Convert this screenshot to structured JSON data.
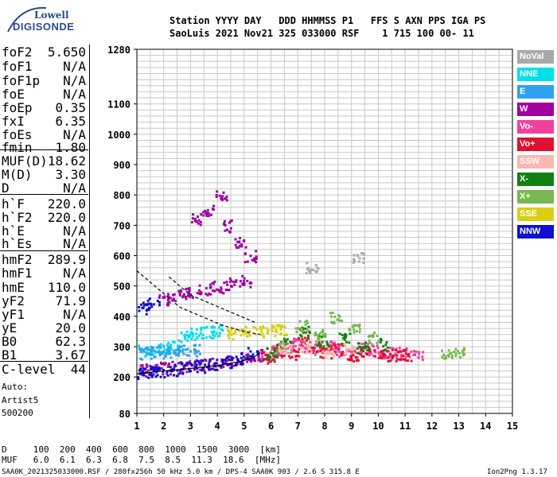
{
  "logo": {
    "line1": "Lowell",
    "line2": "DIGISONDE"
  },
  "header": {
    "labels": "Station YYYY DAY   DDD HHMMSS P1   FFS S AXN PPS IGA PS",
    "values": "SaoLuis 2021 Nov21 325 033000 RSF    1 715 100 00- 11"
  },
  "params": [
    {
      "name": "foF2",
      "value": "5.650"
    },
    {
      "name": "foF1",
      "value": "N/A"
    },
    {
      "name": "foF1p",
      "value": "N/A"
    },
    {
      "name": "foE",
      "value": "N/A"
    },
    {
      "name": "foEp",
      "value": "0.35"
    },
    {
      "name": "fxI",
      "value": "6.35"
    },
    {
      "name": "foEs",
      "value": "N/A"
    },
    {
      "name": "fmin",
      "value": "1.80"
    },
    {
      "name": "MUF(D)",
      "value": "18.62"
    },
    {
      "name": "M(D)",
      "value": "3.30"
    },
    {
      "name": "D",
      "value": "N/A"
    },
    {
      "name": "h`F",
      "value": "220.0"
    },
    {
      "name": "h`F2",
      "value": "220.0"
    },
    {
      "name": "h`E",
      "value": "N/A"
    },
    {
      "name": "h`Es",
      "value": "N/A"
    },
    {
      "name": "hmF2",
      "value": "289.9"
    },
    {
      "name": "hmF1",
      "value": "N/A"
    },
    {
      "name": "hmE",
      "value": "110.0"
    },
    {
      "name": "yF2",
      "value": "71.9"
    },
    {
      "name": "yF1",
      "value": "N/A"
    },
    {
      "name": "yE",
      "value": "20.0"
    },
    {
      "name": "B0",
      "value": "62.3"
    },
    {
      "name": "B1",
      "value": "3.67"
    },
    {
      "name": "C-level",
      "value": "44"
    }
  ],
  "notes": {
    "auto": "Auto:",
    "artist": "Artist5",
    "code": "500200"
  },
  "legend": [
    {
      "label": "NoVal",
      "color": "#a9a9a9"
    },
    {
      "label": "NNE",
      "color": "#00e0e8"
    },
    {
      "label": "E",
      "color": "#2ea0f0"
    },
    {
      "label": "W",
      "color": "#a000a0"
    },
    {
      "label": "Vo-",
      "color": "#f040a0"
    },
    {
      "label": "Vo+",
      "color": "#e01030"
    },
    {
      "label": "SSW",
      "color": "#f8b8b0"
    },
    {
      "label": "X-",
      "color": "#108010"
    },
    {
      "label": "X+",
      "color": "#78b850"
    },
    {
      "label": "SSE",
      "color": "#d8d010"
    },
    {
      "label": "NNW",
      "color": "#1010d0"
    }
  ],
  "footer": {
    "d_row": "D     100  200  400  600  800  1000  1500  3000  [km]",
    "muf_row": "MUF   6.0  6.1  6.3  6.8  7.5  8.5  11.3  18.6  [MHz]",
    "file_info": "SAA0K_2021325033000.RSF / 280fx256h 50 kHz 5.0 km / DPS-4 SAA0K 903 / 2.6 S 315.8 E",
    "version": "Ion2Png 1.3.17"
  },
  "chart_data": {
    "type": "scatter",
    "title": "",
    "xlabel": "",
    "ylabel": "",
    "xlim": [
      1,
      15
    ],
    "ylim": [
      80,
      1280
    ],
    "x_ticks": [
      1,
      2,
      3,
      4,
      5,
      6,
      7,
      8,
      9,
      10,
      11,
      12,
      13,
      14,
      15
    ],
    "y_ticks": [
      80,
      200,
      300,
      400,
      500,
      600,
      700,
      800,
      900,
      1000,
      1100,
      1280
    ],
    "grid": true,
    "series": [
      {
        "color": "#f040a0",
        "x": [
          5.8,
          6.2,
          6.6,
          7.0,
          7.4,
          7.8,
          8.2,
          8.6,
          9.0,
          9.4,
          9.8,
          10.2,
          10.6,
          11.0,
          11.5
        ],
        "y": [
          275,
          285,
          300,
          310,
          305,
          295,
          300,
          290,
          285,
          295,
          290,
          285,
          280,
          280,
          278
        ]
      },
      {
        "color": "#e01030",
        "x": [
          5.9,
          6.3,
          6.8,
          7.2,
          7.6,
          8.0,
          8.5,
          9.0,
          9.5,
          10.0,
          10.5,
          11.0
        ],
        "y": [
          265,
          290,
          280,
          320,
          300,
          285,
          295,
          275,
          285,
          280,
          275,
          272
        ]
      },
      {
        "color": "#a000a0",
        "x": [
          1.1,
          1.5,
          2.0,
          2.5,
          3.0,
          3.5,
          4.0,
          4.5,
          5.0,
          5.5,
          2.0,
          2.5,
          3.0,
          3.5,
          4.0,
          4.5,
          5.0,
          3.2,
          3.6,
          4.1,
          4.4,
          4.8,
          5.2
        ],
        "y": [
          225,
          228,
          232,
          236,
          240,
          245,
          250,
          258,
          265,
          275,
          460,
          470,
          480,
          490,
          500,
          510,
          520,
          720,
          750,
          800,
          700,
          650,
          600
        ]
      },
      {
        "color": "#1010d0",
        "x": [
          1.05,
          1.4,
          1.8,
          2.3,
          2.8,
          3.3,
          3.8,
          4.3,
          4.8,
          5.3,
          1.2,
          1.6
        ],
        "y": [
          215,
          218,
          222,
          226,
          232,
          238,
          244,
          252,
          262,
          280,
          430,
          445
        ]
      },
      {
        "color": "#00e0e8",
        "x": [
          1.2,
          1.6,
          2.0,
          2.4,
          2.8,
          3.2,
          3.6,
          4.0
        ],
        "y": [
          290,
          295,
          300,
          305,
          340,
          345,
          350,
          355
        ]
      },
      {
        "color": "#2ea0f0",
        "x": [
          1.1,
          1.5,
          1.9,
          2.3,
          2.7,
          3.1
        ],
        "y": [
          280,
          282,
          284,
          286,
          288,
          290
        ]
      },
      {
        "color": "#108010",
        "x": [
          6.0,
          6.5,
          7.2,
          7.9,
          8.7,
          9.4,
          10.2
        ],
        "y": [
          280,
          310,
          350,
          320,
          330,
          300,
          310
        ]
      },
      {
        "color": "#78b850",
        "x": [
          6.3,
          7.1,
          7.8,
          8.4,
          9.1,
          9.8,
          12.5,
          13.0
        ],
        "y": [
          300,
          370,
          340,
          400,
          360,
          330,
          283,
          285
        ]
      },
      {
        "color": "#d8d010",
        "x": [
          4.5,
          5.0,
          5.5,
          6.0,
          6.4
        ],
        "y": [
          345,
          350,
          352,
          355,
          360
        ]
      },
      {
        "color": "#f8b8b0",
        "x": [
          6.5,
          7.3,
          8.1,
          8.9
        ],
        "y": [
          290,
          300,
          285,
          295
        ]
      },
      {
        "color": "#a9a9a9",
        "x": [
          7.5,
          9.2
        ],
        "y": [
          560,
          600
        ]
      }
    ],
    "curves": [
      {
        "name": "profile",
        "x": [
          1.0,
          2.0,
          3.0,
          4.0,
          4.8,
          5.3,
          5.6
        ],
        "y": [
          210,
          220,
          228,
          238,
          250,
          262,
          280
        ]
      },
      {
        "name": "o-trace",
        "x": [
          1.0,
          1.8,
          2.6,
          3.4,
          4.2,
          5.0,
          5.6
        ],
        "y": [
          550,
          490,
          430,
          400,
          370,
          350,
          340
        ]
      },
      {
        "name": "x-trace",
        "x": [
          2.2,
          3.0,
          3.8,
          4.6,
          5.4
        ],
        "y": [
          530,
          470,
          440,
          410,
          380
        ]
      }
    ]
  }
}
